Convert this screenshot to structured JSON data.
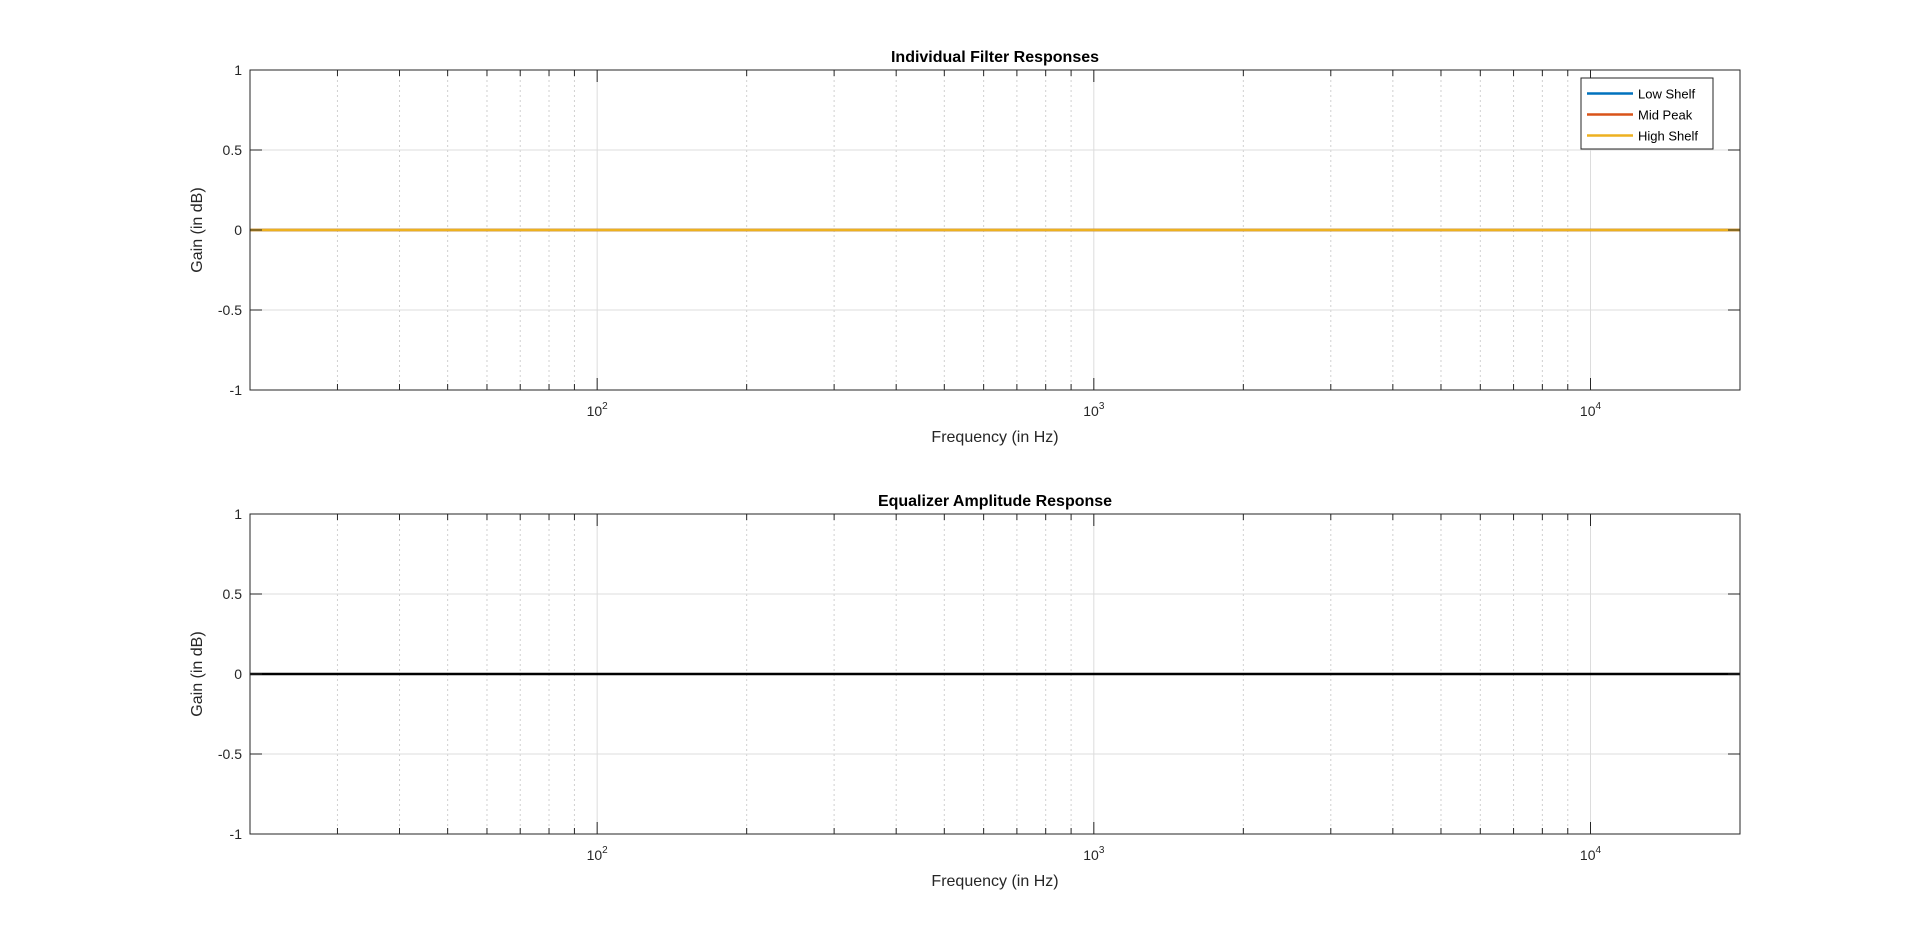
{
  "chart_data": [
    {
      "type": "line",
      "title": "Individual Filter Responses",
      "xlabel": "Frequency (in Hz)",
      "ylabel": "Gain (in dB)",
      "xscale": "log",
      "xlim": [
        20,
        20000
      ],
      "ylim": [
        -1,
        1
      ],
      "x_ticks": [
        100,
        1000,
        10000
      ],
      "x_tick_labels": [
        {
          "base": "10",
          "exp": "2"
        },
        {
          "base": "10",
          "exp": "3"
        },
        {
          "base": "10",
          "exp": "4"
        }
      ],
      "y_ticks": [
        -1,
        -0.5,
        0,
        0.5,
        1
      ],
      "y_tick_labels": [
        "-1",
        "-0.5",
        "0",
        "0.5",
        "1"
      ],
      "grid": true,
      "minor_grid": true,
      "legend": "top-right",
      "series": [
        {
          "name": "Low Shelf",
          "color": "#0072BD",
          "x": [
            20,
            20000
          ],
          "values": [
            0,
            0
          ]
        },
        {
          "name": "Mid Peak",
          "color": "#D95319",
          "x": [
            20,
            20000
          ],
          "values": [
            0,
            0
          ]
        },
        {
          "name": "High Shelf",
          "color": "#EDB120",
          "x": [
            20,
            20000
          ],
          "values": [
            0,
            0
          ]
        }
      ]
    },
    {
      "type": "line",
      "title": "Equalizer Amplitude Response",
      "xlabel": "Frequency (in Hz)",
      "ylabel": "Gain (in dB)",
      "xscale": "log",
      "xlim": [
        20,
        20000
      ],
      "ylim": [
        -1,
        1
      ],
      "x_ticks": [
        100,
        1000,
        10000
      ],
      "x_tick_labels": [
        {
          "base": "10",
          "exp": "2"
        },
        {
          "base": "10",
          "exp": "3"
        },
        {
          "base": "10",
          "exp": "4"
        }
      ],
      "y_ticks": [
        -1,
        -0.5,
        0,
        0.5,
        1
      ],
      "y_tick_labels": [
        "-1",
        "-0.5",
        "0",
        "0.5",
        "1"
      ],
      "grid": true,
      "minor_grid": true,
      "legend": "none",
      "series": [
        {
          "color": "#000000",
          "x": [
            20,
            20000
          ],
          "values": [
            0,
            0
          ]
        }
      ]
    }
  ]
}
